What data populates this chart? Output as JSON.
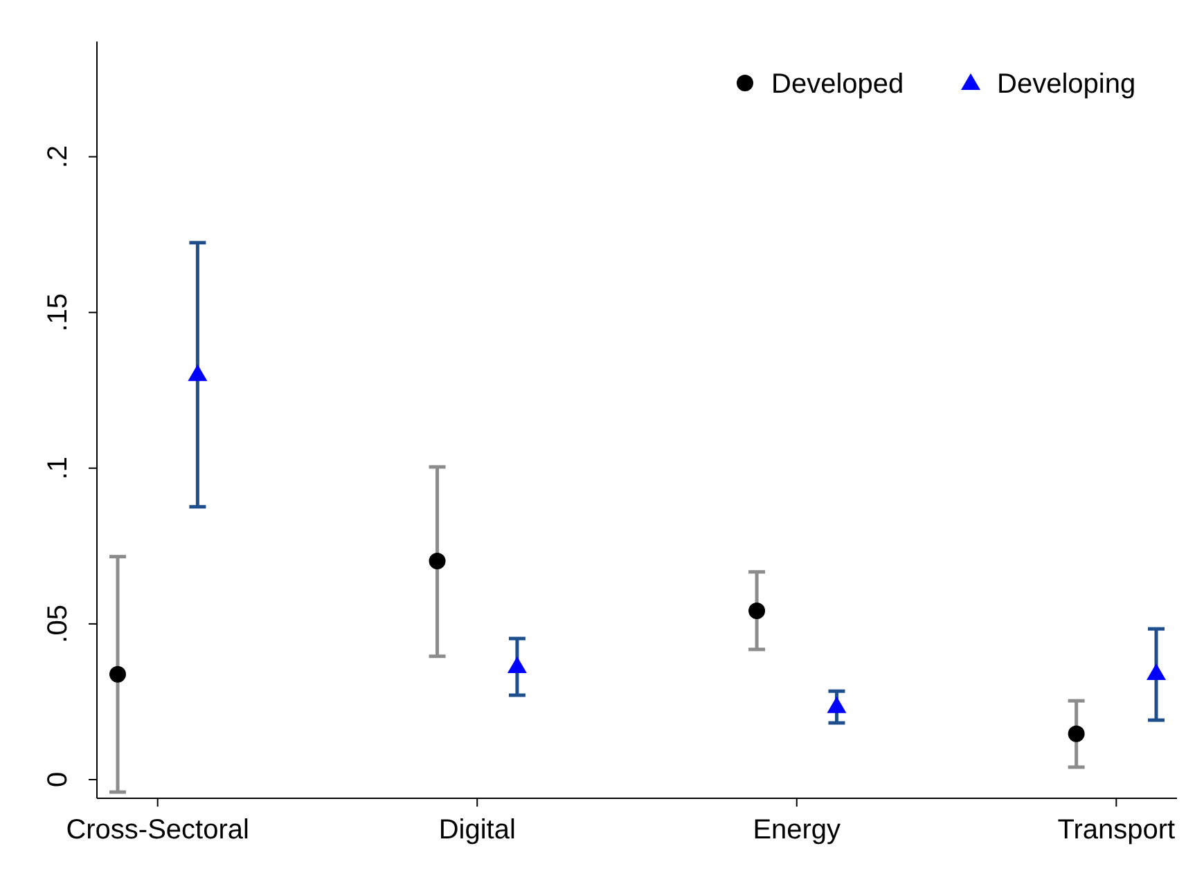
{
  "chart_data": {
    "type": "scatter",
    "categories": [
      "Cross-Sectoral",
      "Digital",
      "Energy",
      "Transport"
    ],
    "ylim": [
      -0.006,
      0.237
    ],
    "yticks": [
      {
        "value": 0,
        "label": "0"
      },
      {
        "value": 0.05,
        "label": ".05"
      },
      {
        "value": 0.1,
        "label": ".1"
      },
      {
        "value": 0.15,
        "label": ".15"
      },
      {
        "value": 0.2,
        "label": ".2"
      }
    ],
    "grid": false,
    "legend": "top right",
    "series": [
      {
        "name": "Developed",
        "color": "#000000",
        "marker": "circle",
        "values": [
          0.0338,
          0.0702,
          0.0542,
          0.0147
        ],
        "errors": [
          [
            -0.004,
            0.0716
          ],
          [
            0.0396,
            0.1004
          ],
          [
            0.0418,
            0.0667
          ],
          [
            0.004,
            0.0253
          ]
        ]
      },
      {
        "name": "Developing",
        "color": "#0000ff",
        "marker": "triangle",
        "values": [
          0.1302,
          0.0364,
          0.0236,
          0.0342
        ],
        "errors": [
          [
            0.0876,
            0.1724
          ],
          [
            0.0271,
            0.0453
          ],
          [
            0.0182,
            0.0284
          ],
          [
            0.0191,
            0.0484
          ]
        ]
      }
    ]
  }
}
